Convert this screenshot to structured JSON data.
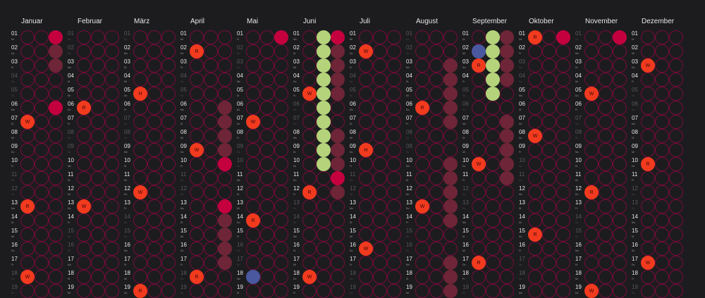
{
  "colors": {
    "background": "#1c1c1e",
    "circle_outline": "#7a0a3c",
    "crimson": "#c4003f",
    "maroon": "#6e2537",
    "green": "#b5d37a",
    "blue": "#4a58a0",
    "marker": "#f23a1e"
  },
  "weekday_abbr": [
    "Mo",
    "Di",
    "Mi",
    "Do",
    "Fr",
    "Sa",
    "So"
  ],
  "visible_days": [
    "01",
    "02",
    "03",
    "04",
    "05",
    "06",
    "07",
    "08",
    "09",
    "10",
    "11",
    "12",
    "13",
    "14",
    "15",
    "16",
    "17",
    "18",
    "19"
  ],
  "months": [
    {
      "name": "Januar",
      "first_weekday": "Mi",
      "marks": [
        {
          "day": 1,
          "col": 3,
          "kind": "crimson"
        },
        {
          "day": 2,
          "col": 3,
          "kind": "maroon"
        },
        {
          "day": 3,
          "col": 3,
          "kind": "maroon"
        },
        {
          "day": 6,
          "col": 3,
          "kind": "crimson"
        },
        {
          "day": 7,
          "col": 1,
          "kind": "marker",
          "label": "W"
        },
        {
          "day": 13,
          "col": 1,
          "kind": "marker",
          "label": "R"
        },
        {
          "day": 18,
          "col": 1,
          "kind": "marker",
          "label": "W"
        }
      ]
    },
    {
      "name": "Februar",
      "first_weekday": "Sa",
      "marks": [
        {
          "day": 6,
          "col": 1,
          "kind": "marker",
          "label": "R"
        },
        {
          "day": 13,
          "col": 1,
          "kind": "marker",
          "label": "W"
        }
      ]
    },
    {
      "name": "März",
      "first_weekday": "So",
      "marks": [
        {
          "day": 5,
          "col": 1,
          "kind": "marker",
          "label": "H"
        },
        {
          "day": 12,
          "col": 1,
          "kind": "marker",
          "label": "W"
        },
        {
          "day": 19,
          "col": 1,
          "kind": "marker",
          "label": "R"
        }
      ]
    },
    {
      "name": "April",
      "first_weekday": "Mi",
      "marks": [
        {
          "day": 2,
          "col": 1,
          "kind": "marker",
          "label": "R"
        },
        {
          "day": 9,
          "col": 1,
          "kind": "marker",
          "label": "W"
        },
        {
          "day": 18,
          "col": 1,
          "kind": "marker",
          "label": "R"
        },
        {
          "day": 6,
          "col": 3,
          "kind": "maroon"
        },
        {
          "day": 7,
          "col": 3,
          "kind": "maroon"
        },
        {
          "day": 8,
          "col": 3,
          "kind": "maroon"
        },
        {
          "day": 9,
          "col": 3,
          "kind": "maroon"
        },
        {
          "day": 10,
          "col": 3,
          "kind": "crimson"
        },
        {
          "day": 13,
          "col": 3,
          "kind": "crimson"
        },
        {
          "day": 14,
          "col": 3,
          "kind": "maroon"
        },
        {
          "day": 15,
          "col": 3,
          "kind": "maroon"
        },
        {
          "day": 16,
          "col": 3,
          "kind": "maroon"
        },
        {
          "day": 17,
          "col": 3,
          "kind": "maroon"
        }
      ]
    },
    {
      "name": "Mai",
      "first_weekday": "Fr",
      "marks": [
        {
          "day": 1,
          "col": 3,
          "kind": "crimson"
        },
        {
          "day": 7,
          "col": 1,
          "kind": "marker",
          "label": "W"
        },
        {
          "day": 14,
          "col": 1,
          "kind": "marker",
          "label": "R"
        },
        {
          "day": 18,
          "col": 1,
          "kind": "blue"
        }
      ]
    },
    {
      "name": "Juni",
      "first_weekday": "Mo",
      "marks": [
        {
          "day": 1,
          "col": 2,
          "kind": "green"
        },
        {
          "day": 2,
          "col": 2,
          "kind": "green"
        },
        {
          "day": 3,
          "col": 2,
          "kind": "green"
        },
        {
          "day": 4,
          "col": 2,
          "kind": "green"
        },
        {
          "day": 5,
          "col": 2,
          "kind": "green"
        },
        {
          "day": 6,
          "col": 2,
          "kind": "green"
        },
        {
          "day": 7,
          "col": 2,
          "kind": "green"
        },
        {
          "day": 8,
          "col": 2,
          "kind": "green"
        },
        {
          "day": 9,
          "col": 2,
          "kind": "green"
        },
        {
          "day": 10,
          "col": 2,
          "kind": "green"
        },
        {
          "day": 1,
          "col": 3,
          "kind": "crimson"
        },
        {
          "day": 2,
          "col": 3,
          "kind": "maroon"
        },
        {
          "day": 3,
          "col": 3,
          "kind": "maroon"
        },
        {
          "day": 4,
          "col": 3,
          "kind": "maroon"
        },
        {
          "day": 5,
          "col": 3,
          "kind": "maroon"
        },
        {
          "day": 8,
          "col": 3,
          "kind": "maroon"
        },
        {
          "day": 9,
          "col": 3,
          "kind": "maroon"
        },
        {
          "day": 10,
          "col": 3,
          "kind": "maroon"
        },
        {
          "day": 11,
          "col": 3,
          "kind": "crimson"
        },
        {
          "day": 12,
          "col": 3,
          "kind": "maroon"
        },
        {
          "day": 5,
          "col": 1,
          "kind": "marker",
          "label": "W"
        },
        {
          "day": 12,
          "col": 1,
          "kind": "marker",
          "label": "R"
        },
        {
          "day": 18,
          "col": 1,
          "kind": "marker",
          "label": "W"
        }
      ]
    },
    {
      "name": "Juli",
      "first_weekday": "Mi",
      "marks": [
        {
          "day": 2,
          "col": 1,
          "kind": "marker",
          "label": "W"
        },
        {
          "day": 9,
          "col": 1,
          "kind": "marker",
          "label": "H"
        },
        {
          "day": 16,
          "col": 1,
          "kind": "marker",
          "label": "W"
        }
      ]
    },
    {
      "name": "August",
      "first_weekday": "Sa",
      "marks": [
        {
          "day": 6,
          "col": 1,
          "kind": "marker",
          "label": "R"
        },
        {
          "day": 13,
          "col": 1,
          "kind": "marker",
          "label": "W"
        },
        {
          "day": 3,
          "col": 3,
          "kind": "maroon"
        },
        {
          "day": 4,
          "col": 3,
          "kind": "maroon"
        },
        {
          "day": 5,
          "col": 3,
          "kind": "maroon"
        },
        {
          "day": 6,
          "col": 3,
          "kind": "maroon"
        },
        {
          "day": 7,
          "col": 3,
          "kind": "maroon"
        },
        {
          "day": 10,
          "col": 3,
          "kind": "maroon"
        },
        {
          "day": 11,
          "col": 3,
          "kind": "maroon"
        },
        {
          "day": 12,
          "col": 3,
          "kind": "maroon"
        },
        {
          "day": 13,
          "col": 3,
          "kind": "maroon"
        },
        {
          "day": 14,
          "col": 3,
          "kind": "maroon"
        },
        {
          "day": 17,
          "col": 3,
          "kind": "maroon"
        },
        {
          "day": 18,
          "col": 3,
          "kind": "maroon"
        },
        {
          "day": 19,
          "col": 3,
          "kind": "maroon"
        }
      ]
    },
    {
      "name": "September",
      "first_weekday": "Di",
      "marks": [
        {
          "day": 1,
          "col": 2,
          "kind": "green"
        },
        {
          "day": 2,
          "col": 2,
          "kind": "green"
        },
        {
          "day": 3,
          "col": 2,
          "kind": "green"
        },
        {
          "day": 4,
          "col": 2,
          "kind": "green"
        },
        {
          "day": 5,
          "col": 2,
          "kind": "green"
        },
        {
          "day": 2,
          "col": 1,
          "kind": "blue"
        },
        {
          "day": 3,
          "col": 1,
          "kind": "marker",
          "label": "R"
        },
        {
          "day": 10,
          "col": 1,
          "kind": "marker",
          "label": "W"
        },
        {
          "day": 17,
          "col": 1,
          "kind": "marker",
          "label": "R"
        },
        {
          "day": 1,
          "col": 3,
          "kind": "maroon"
        },
        {
          "day": 2,
          "col": 3,
          "kind": "maroon"
        },
        {
          "day": 3,
          "col": 3,
          "kind": "maroon"
        },
        {
          "day": 4,
          "col": 3,
          "kind": "maroon"
        },
        {
          "day": 7,
          "col": 3,
          "kind": "maroon"
        },
        {
          "day": 8,
          "col": 3,
          "kind": "maroon"
        },
        {
          "day": 9,
          "col": 3,
          "kind": "maroon"
        },
        {
          "day": 10,
          "col": 3,
          "kind": "maroon"
        },
        {
          "day": 11,
          "col": 3,
          "kind": "maroon"
        }
      ]
    },
    {
      "name": "Oktober",
      "first_weekday": "Do",
      "marks": [
        {
          "day": 1,
          "col": 1,
          "kind": "marker",
          "label": "R"
        },
        {
          "day": 1,
          "col": 3,
          "kind": "crimson"
        },
        {
          "day": 8,
          "col": 1,
          "kind": "marker",
          "label": "W"
        },
        {
          "day": 15,
          "col": 1,
          "kind": "marker",
          "label": "R"
        }
      ]
    },
    {
      "name": "November",
      "first_weekday": "So",
      "marks": [
        {
          "day": 1,
          "col": 3,
          "kind": "crimson"
        },
        {
          "day": 5,
          "col": 1,
          "kind": "marker",
          "label": "W"
        },
        {
          "day": 12,
          "col": 1,
          "kind": "marker",
          "label": "R"
        },
        {
          "day": 19,
          "col": 1,
          "kind": "marker",
          "label": "W"
        }
      ]
    },
    {
      "name": "Dezember",
      "first_weekday": "Di",
      "marks": [
        {
          "day": 3,
          "col": 1,
          "kind": "marker",
          "label": "W"
        },
        {
          "day": 10,
          "col": 1,
          "kind": "marker",
          "label": "R"
        },
        {
          "day": 17,
          "col": 1,
          "kind": "marker",
          "label": "W"
        }
      ]
    }
  ]
}
